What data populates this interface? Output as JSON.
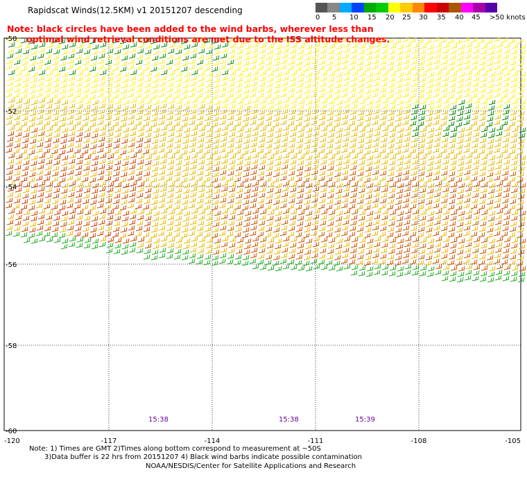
{
  "title": "Rapidscat Winds(12.5KM) v1 20151207 descending",
  "note": {
    "line1": "Note: black circles have been added to the wind barbs, wherever less than",
    "line2": "optimal wind retrieval conditions are met due to the ISS altitude changes."
  },
  "legend": {
    "colors": [
      "#555555",
      "#888888",
      "#00aaff",
      "#0044ff",
      "#00aa00",
      "#00cc00",
      "#ffff00",
      "#ffcc00",
      "#ff8800",
      "#ff0000",
      "#cc0000",
      "#aa5500",
      "#ff00ff",
      "#aa00aa",
      "#5500aa"
    ],
    "labels": [
      "0",
      "5",
      "10",
      "15",
      "20",
      "25",
      "30",
      "35",
      "40",
      "45",
      ">50 knots"
    ]
  },
  "axes": {
    "lat_labels": [
      "-50",
      "-52",
      "-54",
      "-56",
      "-58",
      "-60"
    ],
    "lon_labels": [
      "-120",
      "-117",
      "-114",
      "-111",
      "-108",
      "-105"
    ]
  },
  "times": [
    "15:38",
    "15:38",
    "15:39"
  ],
  "footer": {
    "line1": "Note: 1) Times are GMT 2)Times along bottom correspond to measurement at ~50S",
    "line2": "3)Data buffer is 22 hrs from 20151207 4) Black wind barbs indicate possible contamination",
    "line3": "NOAA/NESDIS/Center for Satellite Applications and Research"
  }
}
